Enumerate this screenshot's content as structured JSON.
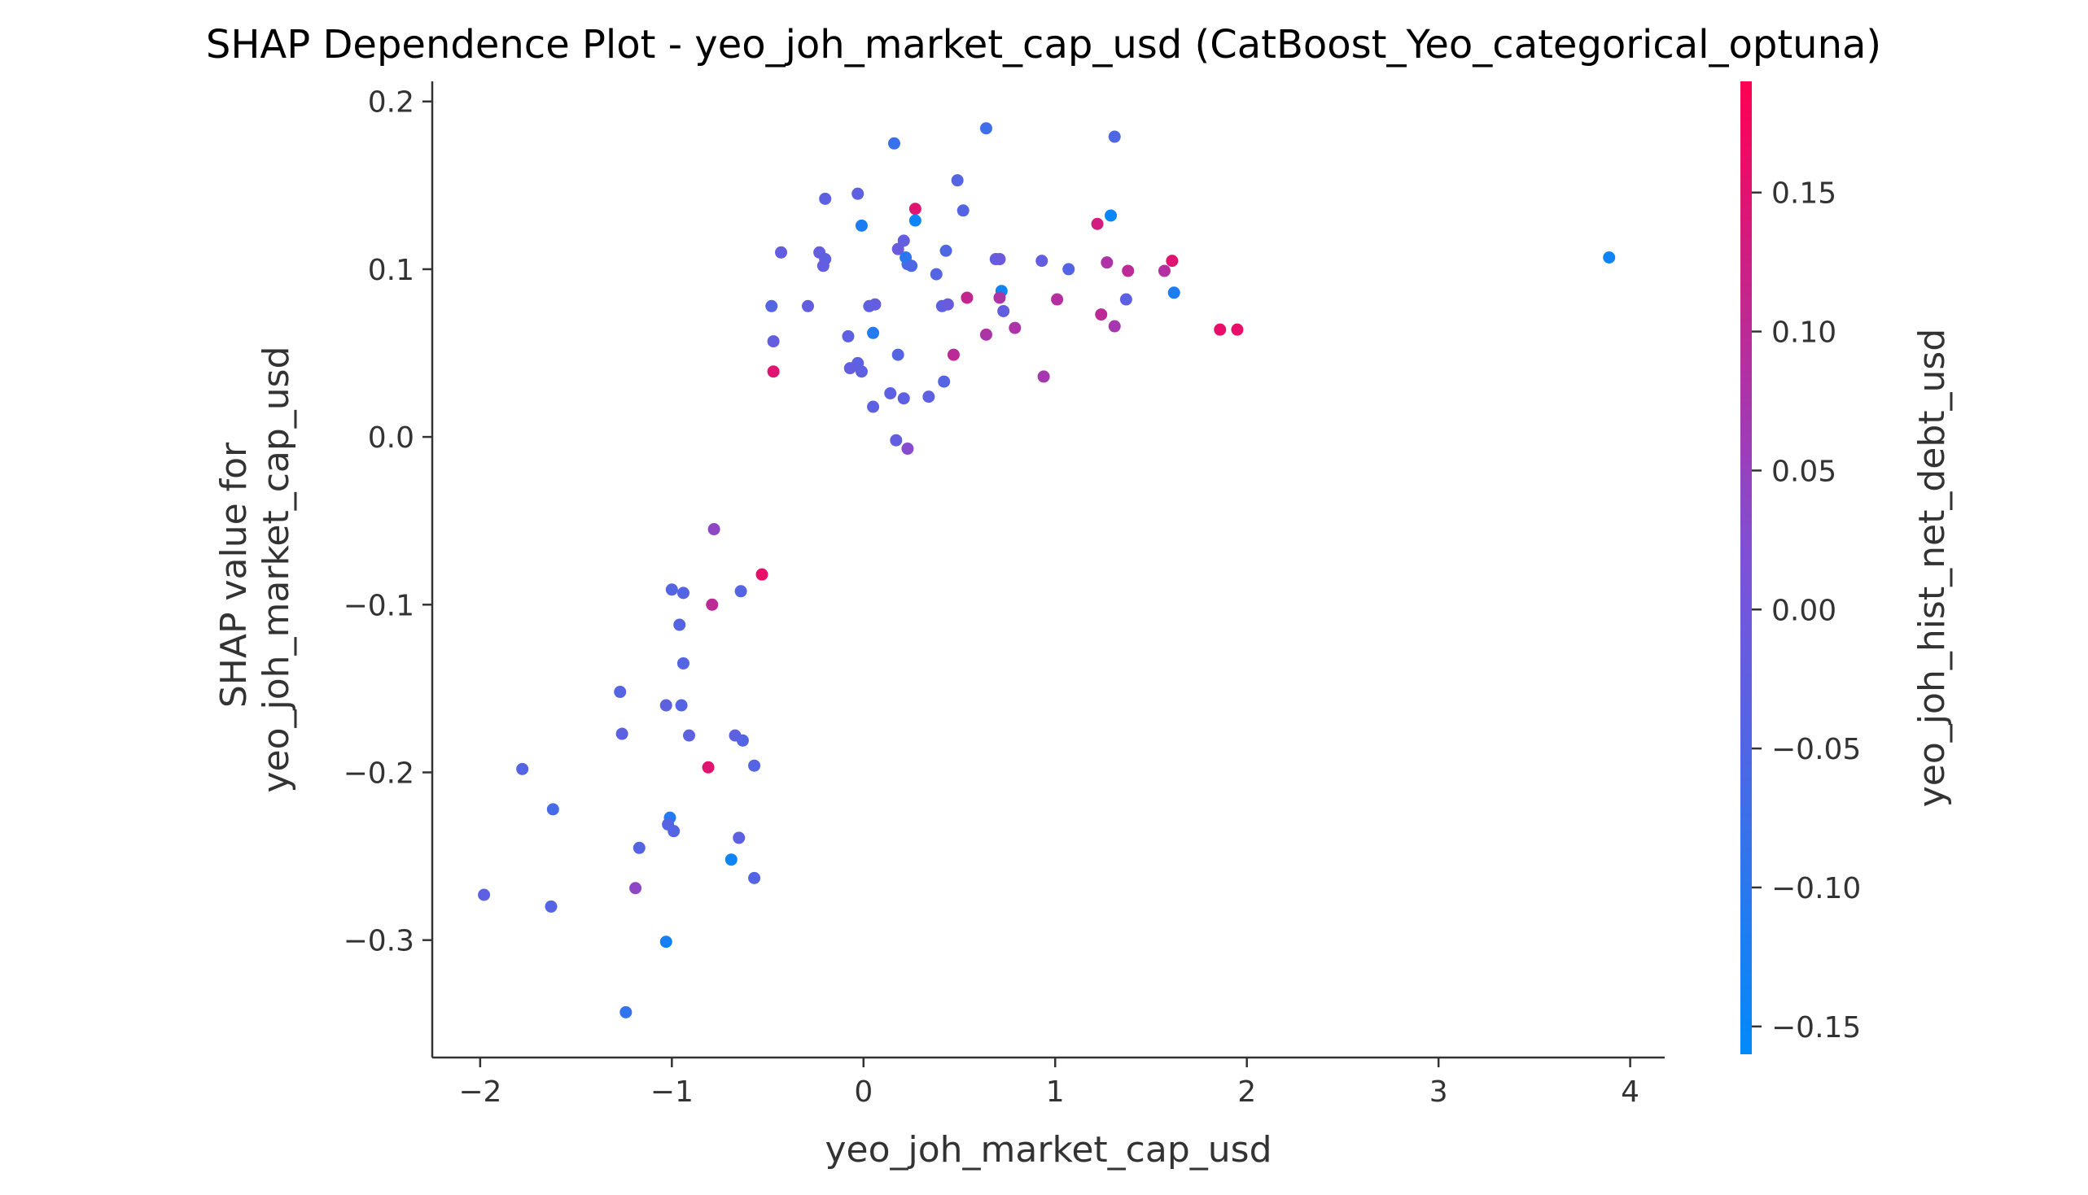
{
  "chart_data": {
    "type": "scatter",
    "title": "SHAP Dependence Plot - yeo_joh_market_cap_usd (CatBoost_Yeo_categorical_optuna)",
    "xlabel": "yeo_joh_market_cap_usd",
    "ylabel_lines": [
      "SHAP value for",
      "yeo_joh_market_cap_usd"
    ],
    "xlim": [
      -2.25,
      4.18
    ],
    "ylim": [
      -0.37,
      0.212
    ],
    "xticks": [
      -2,
      -1,
      0,
      1,
      2,
      3,
      4
    ],
    "xtick_labels": [
      "−2",
      "−1",
      "0",
      "1",
      "2",
      "3",
      "4"
    ],
    "yticks": [
      -0.3,
      -0.2,
      -0.1,
      0.0,
      0.1,
      0.2
    ],
    "ytick_labels": [
      "−0.3",
      "−0.2",
      "−0.1",
      "0.0",
      "0.1",
      "0.2"
    ],
    "colorbar": {
      "label": "yeo_joh_hist_net_debt_usd",
      "range": [
        -0.16,
        0.19
      ],
      "ticks": [
        -0.15,
        -0.1,
        -0.05,
        0.0,
        0.05,
        0.1,
        0.15
      ],
      "tick_labels": [
        "−0.15",
        "−0.10",
        "−0.05",
        "0.00",
        "0.05",
        "0.10",
        "0.15"
      ],
      "color_low": "#008afb",
      "color_mid": "#7c52d8",
      "color_high": "#ff0052"
    },
    "grid": false,
    "points": [
      {
        "x": 0.16,
        "y": 0.175,
        "c": -0.08
      },
      {
        "x": 0.64,
        "y": 0.184,
        "c": -0.07
      },
      {
        "x": 1.31,
        "y": 0.179,
        "c": -0.05
      },
      {
        "x": -0.03,
        "y": 0.145,
        "c": -0.03
      },
      {
        "x": 0.49,
        "y": 0.153,
        "c": -0.04
      },
      {
        "x": -0.2,
        "y": 0.142,
        "c": -0.03
      },
      {
        "x": 0.27,
        "y": 0.136,
        "c": 0.15
      },
      {
        "x": 0.52,
        "y": 0.135,
        "c": -0.04
      },
      {
        "x": -0.01,
        "y": 0.126,
        "c": -0.12
      },
      {
        "x": 0.27,
        "y": 0.129,
        "c": -0.14
      },
      {
        "x": 1.29,
        "y": 0.132,
        "c": -0.15
      },
      {
        "x": 1.22,
        "y": 0.127,
        "c": 0.13
      },
      {
        "x": 0.18,
        "y": 0.112,
        "c": -0.01
      },
      {
        "x": 0.21,
        "y": 0.117,
        "c": -0.02
      },
      {
        "x": -0.43,
        "y": 0.11,
        "c": -0.02
      },
      {
        "x": -0.23,
        "y": 0.11,
        "c": -0.02
      },
      {
        "x": -0.2,
        "y": 0.106,
        "c": -0.03
      },
      {
        "x": -0.21,
        "y": 0.102,
        "c": -0.02
      },
      {
        "x": 0.23,
        "y": 0.103,
        "c": -0.05
      },
      {
        "x": 0.22,
        "y": 0.107,
        "c": -0.1
      },
      {
        "x": 0.25,
        "y": 0.102,
        "c": -0.05
      },
      {
        "x": 0.43,
        "y": 0.111,
        "c": -0.05
      },
      {
        "x": 0.69,
        "y": 0.106,
        "c": -0.02
      },
      {
        "x": 0.71,
        "y": 0.106,
        "c": -0.01
      },
      {
        "x": 0.93,
        "y": 0.105,
        "c": -0.02
      },
      {
        "x": 1.27,
        "y": 0.104,
        "c": 0.08
      },
      {
        "x": 1.61,
        "y": 0.105,
        "c": 0.15
      },
      {
        "x": 1.07,
        "y": 0.1,
        "c": -0.04
      },
      {
        "x": 1.38,
        "y": 0.099,
        "c": 0.1
      },
      {
        "x": 1.57,
        "y": 0.099,
        "c": 0.09
      },
      {
        "x": 0.38,
        "y": 0.097,
        "c": -0.04
      },
      {
        "x": 3.89,
        "y": 0.107,
        "c": -0.14
      },
      {
        "x": 1.62,
        "y": 0.086,
        "c": -0.12
      },
      {
        "x": 0.72,
        "y": 0.087,
        "c": -0.14
      },
      {
        "x": 0.71,
        "y": 0.083,
        "c": 0.08
      },
      {
        "x": 0.54,
        "y": 0.083,
        "c": 0.11
      },
      {
        "x": 1.01,
        "y": 0.082,
        "c": 0.09
      },
      {
        "x": 1.37,
        "y": 0.082,
        "c": -0.03
      },
      {
        "x": -0.48,
        "y": 0.078,
        "c": -0.04
      },
      {
        "x": -0.29,
        "y": 0.078,
        "c": -0.02
      },
      {
        "x": 0.03,
        "y": 0.078,
        "c": -0.03
      },
      {
        "x": 0.06,
        "y": 0.079,
        "c": -0.02
      },
      {
        "x": 0.41,
        "y": 0.078,
        "c": -0.03
      },
      {
        "x": 0.44,
        "y": 0.079,
        "c": -0.01
      },
      {
        "x": 0.73,
        "y": 0.075,
        "c": -0.02
      },
      {
        "x": 1.24,
        "y": 0.073,
        "c": 0.1
      },
      {
        "x": 1.31,
        "y": 0.066,
        "c": 0.07
      },
      {
        "x": 0.79,
        "y": 0.065,
        "c": 0.08
      },
      {
        "x": 0.64,
        "y": 0.061,
        "c": 0.08
      },
      {
        "x": 1.86,
        "y": 0.064,
        "c": 0.16
      },
      {
        "x": 1.95,
        "y": 0.064,
        "c": 0.16
      },
      {
        "x": 0.05,
        "y": 0.062,
        "c": -0.11
      },
      {
        "x": -0.08,
        "y": 0.06,
        "c": -0.03
      },
      {
        "x": -0.47,
        "y": 0.057,
        "c": -0.02
      },
      {
        "x": 0.18,
        "y": 0.049,
        "c": -0.04
      },
      {
        "x": 0.47,
        "y": 0.049,
        "c": 0.1
      },
      {
        "x": -0.03,
        "y": 0.044,
        "c": -0.03
      },
      {
        "x": -0.07,
        "y": 0.041,
        "c": -0.02
      },
      {
        "x": -0.01,
        "y": 0.039,
        "c": -0.03
      },
      {
        "x": -0.47,
        "y": 0.039,
        "c": 0.15
      },
      {
        "x": 0.94,
        "y": 0.036,
        "c": 0.07
      },
      {
        "x": 0.42,
        "y": 0.033,
        "c": -0.04
      },
      {
        "x": 0.14,
        "y": 0.026,
        "c": -0.03
      },
      {
        "x": 0.21,
        "y": 0.023,
        "c": -0.03
      },
      {
        "x": 0.34,
        "y": 0.024,
        "c": -0.03
      },
      {
        "x": 0.05,
        "y": 0.018,
        "c": -0.03
      },
      {
        "x": 0.17,
        "y": -0.002,
        "c": -0.02
      },
      {
        "x": 0.23,
        "y": -0.007,
        "c": 0.03
      },
      {
        "x": -0.78,
        "y": -0.055,
        "c": 0.04
      },
      {
        "x": -0.53,
        "y": -0.082,
        "c": 0.16
      },
      {
        "x": -1.0,
        "y": -0.091,
        "c": -0.04
      },
      {
        "x": -0.94,
        "y": -0.093,
        "c": -0.04
      },
      {
        "x": -0.64,
        "y": -0.092,
        "c": -0.04
      },
      {
        "x": -0.79,
        "y": -0.1,
        "c": 0.1
      },
      {
        "x": -0.96,
        "y": -0.112,
        "c": -0.04
      },
      {
        "x": -0.94,
        "y": -0.135,
        "c": -0.04
      },
      {
        "x": -1.27,
        "y": -0.152,
        "c": -0.04
      },
      {
        "x": -1.03,
        "y": -0.16,
        "c": -0.03
      },
      {
        "x": -0.95,
        "y": -0.16,
        "c": -0.04
      },
      {
        "x": -1.26,
        "y": -0.177,
        "c": -0.03
      },
      {
        "x": -0.91,
        "y": -0.178,
        "c": -0.03
      },
      {
        "x": -0.67,
        "y": -0.178,
        "c": -0.03
      },
      {
        "x": -0.63,
        "y": -0.181,
        "c": -0.04
      },
      {
        "x": -0.57,
        "y": -0.196,
        "c": -0.04
      },
      {
        "x": -0.81,
        "y": -0.197,
        "c": 0.15
      },
      {
        "x": -1.78,
        "y": -0.198,
        "c": -0.04
      },
      {
        "x": -1.62,
        "y": -0.222,
        "c": -0.06
      },
      {
        "x": -1.01,
        "y": -0.227,
        "c": -0.11
      },
      {
        "x": -1.02,
        "y": -0.231,
        "c": -0.04
      },
      {
        "x": -0.99,
        "y": -0.235,
        "c": -0.04
      },
      {
        "x": -0.65,
        "y": -0.239,
        "c": -0.03
      },
      {
        "x": -1.17,
        "y": -0.245,
        "c": -0.04
      },
      {
        "x": -0.69,
        "y": -0.252,
        "c": -0.14
      },
      {
        "x": -0.57,
        "y": -0.263,
        "c": -0.04
      },
      {
        "x": -1.19,
        "y": -0.269,
        "c": 0.04
      },
      {
        "x": -1.98,
        "y": -0.273,
        "c": -0.03
      },
      {
        "x": -1.63,
        "y": -0.28,
        "c": -0.04
      },
      {
        "x": -1.03,
        "y": -0.301,
        "c": -0.13
      },
      {
        "x": -1.24,
        "y": -0.343,
        "c": -0.09
      }
    ]
  }
}
